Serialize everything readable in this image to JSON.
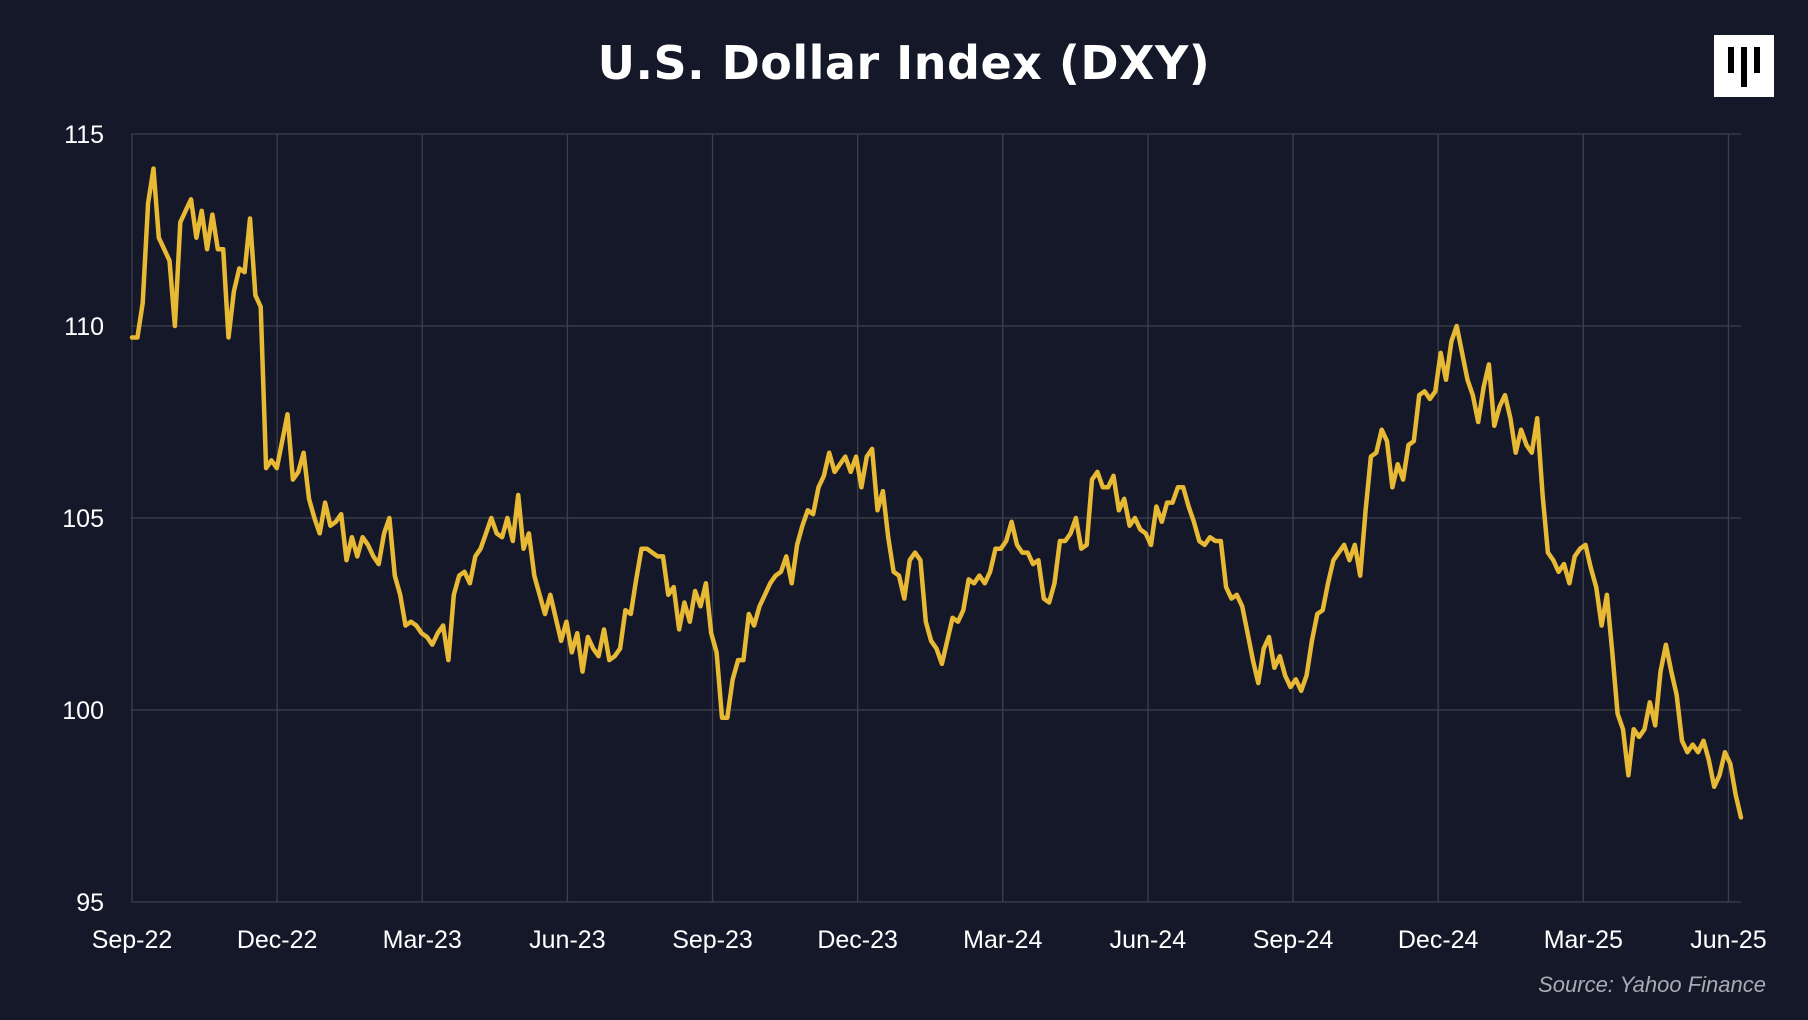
{
  "chart_data": {
    "type": "line",
    "title": "U.S. Dollar Index (DXY)",
    "source": "Source: Yahoo Finance",
    "xlabel": "",
    "ylabel": "",
    "ylim": [
      95,
      115
    ],
    "yticks": [
      "95",
      "100",
      "105",
      "110",
      "115"
    ],
    "xticks": [
      "Sep-22",
      "Dec-22",
      "Mar-23",
      "Jun-23",
      "Sep-23",
      "Dec-23",
      "Mar-24",
      "Jun-24",
      "Sep-24",
      "Dec-24",
      "Mar-25",
      "Jun-25"
    ],
    "x_unit": "months since Sep-22",
    "xlim": [
      0,
      33.26
    ],
    "grid": true,
    "series": [
      {
        "name": "DXY",
        "color": "#E8B934",
        "values": [
          109.7,
          109.7,
          110.6,
          113.2,
          114.1,
          112.3,
          112,
          111.7,
          110,
          112.7,
          113,
          113.3,
          112.3,
          113,
          112,
          112.9,
          112,
          112,
          109.7,
          110.9,
          111.5,
          111.4,
          112.8,
          110.8,
          110.5,
          106.3,
          106.5,
          106.3,
          107,
          107.7,
          106,
          106.2,
          106.7,
          105.5,
          105,
          104.6,
          105.4,
          104.8,
          104.9,
          105.1,
          103.9,
          104.5,
          104,
          104.5,
          104.3,
          104,
          103.8,
          104.6,
          105,
          103.5,
          103,
          102.2,
          102.3,
          102.2,
          102,
          101.9,
          101.7,
          102,
          102.2,
          101.3,
          103,
          103.5,
          103.6,
          103.3,
          104,
          104.2,
          104.6,
          105,
          104.6,
          104.5,
          105,
          104.4,
          105.6,
          104.2,
          104.6,
          103.5,
          103,
          102.5,
          103,
          102.4,
          101.8,
          102.3,
          101.5,
          102,
          101,
          101.9,
          101.6,
          101.4,
          102.1,
          101.3,
          101.4,
          101.6,
          102.6,
          102.5,
          103.4,
          104.2,
          104.2,
          104.1,
          104,
          104,
          103,
          103.2,
          102.1,
          102.8,
          102.3,
          103.1,
          102.7,
          103.3,
          102,
          101.5,
          99.8,
          99.8,
          100.8,
          101.3,
          101.3,
          102.5,
          102.2,
          102.7,
          103,
          103.3,
          103.5,
          103.6,
          104,
          103.3,
          104.3,
          104.8,
          105.2,
          105.1,
          105.8,
          106.1,
          106.7,
          106.2,
          106.4,
          106.6,
          106.2,
          106.6,
          105.8,
          106.6,
          106.8,
          105.2,
          105.7,
          104.5,
          103.6,
          103.5,
          102.9,
          103.9,
          104.1,
          103.9,
          102.3,
          101.8,
          101.6,
          101.2,
          101.8,
          102.4,
          102.3,
          102.6,
          103.4,
          103.3,
          103.5,
          103.3,
          103.6,
          104.2,
          104.2,
          104.4,
          104.9,
          104.3,
          104.1,
          104.1,
          103.8,
          103.9,
          102.9,
          102.8,
          103.3,
          104.4,
          104.4,
          104.6,
          105,
          104.2,
          104.3,
          106,
          106.2,
          105.8,
          105.8,
          106.1,
          105.2,
          105.5,
          104.8,
          105,
          104.7,
          104.6,
          104.3,
          105.3,
          104.9,
          105.4,
          105.4,
          105.8,
          105.8,
          105.3,
          104.9,
          104.4,
          104.3,
          104.5,
          104.4,
          104.4,
          103.2,
          102.9,
          103,
          102.7,
          102,
          101.3,
          100.7,
          101.6,
          101.9,
          101.1,
          101.4,
          100.9,
          100.6,
          100.8,
          100.5,
          100.9,
          101.8,
          102.5,
          102.6,
          103.3,
          103.9,
          104.1,
          104.3,
          103.9,
          104.3,
          103.5,
          105.2,
          106.6,
          106.7,
          107.3,
          107,
          105.8,
          106.4,
          106,
          106.9,
          107,
          108.2,
          108.3,
          108.1,
          108.3,
          109.3,
          108.6,
          109.6,
          110,
          109.3,
          108.6,
          108.2,
          107.5,
          108.4,
          109,
          107.4,
          107.9,
          108.2,
          107.6,
          106.7,
          107.3,
          106.9,
          106.7,
          107.6,
          105.6,
          104.1,
          103.9,
          103.6,
          103.8,
          103.3,
          104,
          104.2,
          104.3,
          103.7,
          103.2,
          102.2,
          103,
          101.5,
          99.9,
          99.5,
          98.3,
          99.5,
          99.3,
          99.5,
          100.2,
          99.6,
          101,
          101.7,
          101,
          100.4,
          99.2,
          98.9,
          99.1,
          98.9,
          99.2,
          98.7,
          98,
          98.3,
          98.9,
          98.6,
          97.8,
          97.2
        ]
      }
    ]
  }
}
